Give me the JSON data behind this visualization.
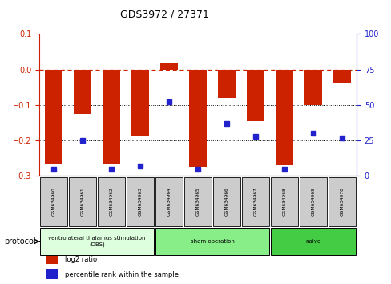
{
  "title": "GDS3972 / 27371",
  "samples": [
    "GSM634960",
    "GSM634961",
    "GSM634962",
    "GSM634963",
    "GSM634964",
    "GSM634965",
    "GSM634966",
    "GSM634967",
    "GSM634968",
    "GSM634969",
    "GSM634970"
  ],
  "log2_ratio": [
    -0.265,
    -0.125,
    -0.265,
    -0.185,
    0.02,
    -0.275,
    -0.08,
    -0.145,
    -0.27,
    -0.1,
    -0.04
  ],
  "percentile_rank": [
    5,
    25,
    5,
    7,
    52,
    5,
    37,
    28,
    5,
    30,
    27
  ],
  "bar_color": "#cc2200",
  "dot_color": "#2222cc",
  "ylim_left": [
    -0.3,
    0.1
  ],
  "ylim_right": [
    0,
    100
  ],
  "yticks_left": [
    -0.3,
    -0.2,
    -0.1,
    0.0,
    0.1
  ],
  "yticks_right": [
    0,
    25,
    50,
    75,
    100
  ],
  "dotted_lines": [
    -0.1,
    -0.2
  ],
  "groups": [
    {
      "label": "ventrolateral thalamus stimulation\n(DBS)",
      "start": 0,
      "end": 3,
      "color": "#ddffdd"
    },
    {
      "label": "sham operation",
      "start": 4,
      "end": 7,
      "color": "#88ee88"
    },
    {
      "label": "naive",
      "start": 8,
      "end": 10,
      "color": "#44cc44"
    }
  ],
  "protocol_label": "protocol",
  "legend_items": [
    {
      "color": "#cc2200",
      "label": "log2 ratio"
    },
    {
      "color": "#2222cc",
      "label": "percentile rank within the sample"
    }
  ],
  "bar_width": 0.6,
  "sample_box_color": "#cccccc",
  "right_axis_color": "#2222cc",
  "left_axis_color": "#cc2200"
}
